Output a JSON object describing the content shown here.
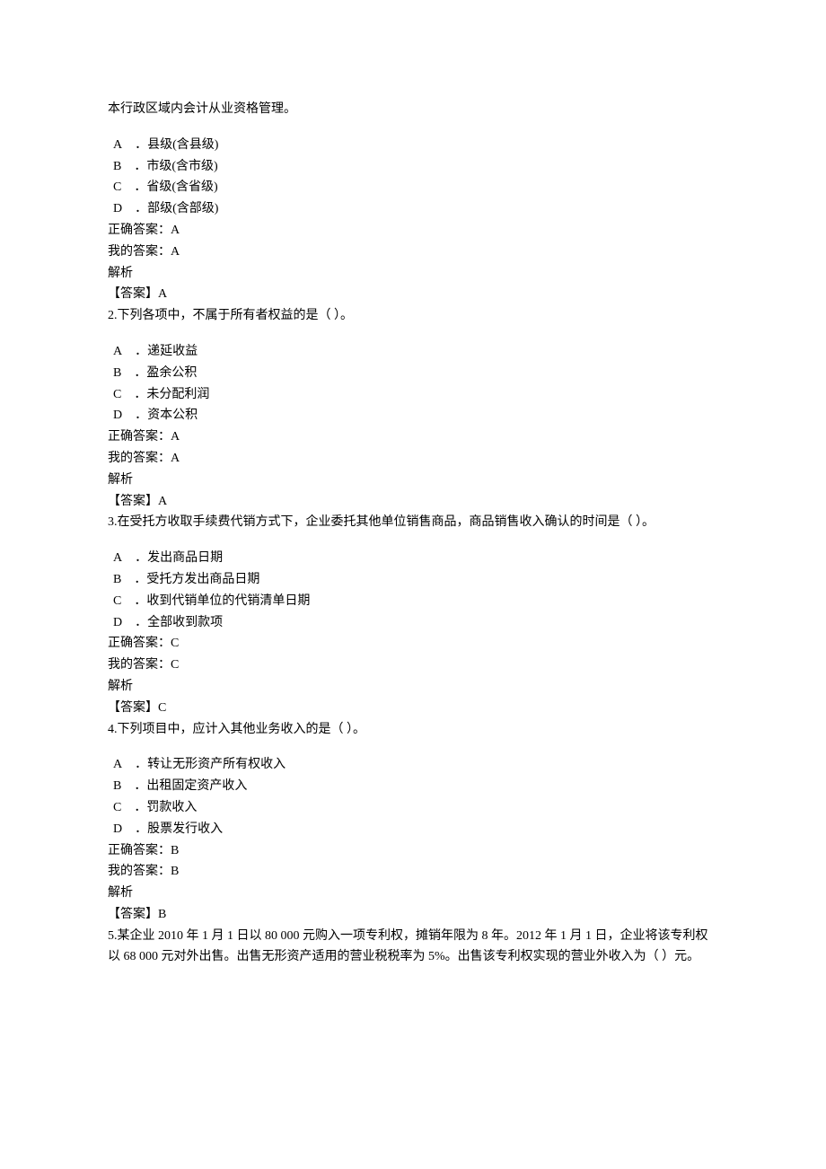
{
  "intro": "本行政区域内会计从业资格管理。",
  "questions": [
    {
      "id": "q1",
      "text": "",
      "options": [
        {
          "letter": "A",
          "text": "县级(含县级)"
        },
        {
          "letter": "B",
          "text": "市级(含市级)"
        },
        {
          "letter": "C",
          "text": "省级(含省级)"
        },
        {
          "letter": "D",
          "text": "部级(含部级)"
        }
      ],
      "correct_label": "正确答案：",
      "correct_value": "A",
      "my_label": "我的答案：",
      "my_value": "A",
      "analysis_label": "解析",
      "answer_key_label": "【答案】",
      "answer_key_value": "A",
      "next_question": "2.下列各项中，不属于所有者权益的是（  ）。"
    },
    {
      "id": "q2",
      "text": "",
      "options": [
        {
          "letter": "A",
          "text": "递延收益"
        },
        {
          "letter": "B",
          "text": "盈余公积"
        },
        {
          "letter": "C",
          "text": "未分配利润"
        },
        {
          "letter": "D",
          "text": "资本公积"
        }
      ],
      "correct_label": "正确答案：",
      "correct_value": "A",
      "my_label": "我的答案：",
      "my_value": "A",
      "analysis_label": "解析",
      "answer_key_label": "【答案】",
      "answer_key_value": "A",
      "next_question": "3.在受托方收取手续费代销方式下，企业委托其他单位销售商品，商品销售收入确认的时间是（  ）。"
    },
    {
      "id": "q3",
      "text": "",
      "options": [
        {
          "letter": "A",
          "text": "发出商品日期"
        },
        {
          "letter": "B",
          "text": "受托方发出商品日期"
        },
        {
          "letter": "C",
          "text": "收到代销单位的代销清单日期"
        },
        {
          "letter": "D",
          "text": "全部收到款项"
        }
      ],
      "correct_label": "正确答案：",
      "correct_value": "C",
      "my_label": "我的答案：",
      "my_value": "C",
      "analysis_label": "解析",
      "answer_key_label": "【答案】",
      "answer_key_value": "C",
      "next_question": "4.下列项目中，应计入其他业务收入的是（  ）。"
    },
    {
      "id": "q4",
      "text": "",
      "options": [
        {
          "letter": "A",
          "text": "转让无形资产所有权收入"
        },
        {
          "letter": "B",
          "text": "出租固定资产收入"
        },
        {
          "letter": "C",
          "text": "罚款收入"
        },
        {
          "letter": "D",
          "text": "股票发行收入"
        }
      ],
      "correct_label": "正确答案：",
      "correct_value": "B",
      "my_label": "我的答案：",
      "my_value": "B",
      "analysis_label": "解析",
      "answer_key_label": "【答案】",
      "answer_key_value": "B",
      "next_question": "5.某企业 2010 年 1 月 1 日以 80 000 元购入一项专利权，摊销年限为 8 年。2012 年 1 月 1 日，企业将该专利权以 68 000 元对外出售。出售无形资产适用的营业税税率为 5%。出售该专利权实现的营业外收入为（  ）元。"
    }
  ]
}
